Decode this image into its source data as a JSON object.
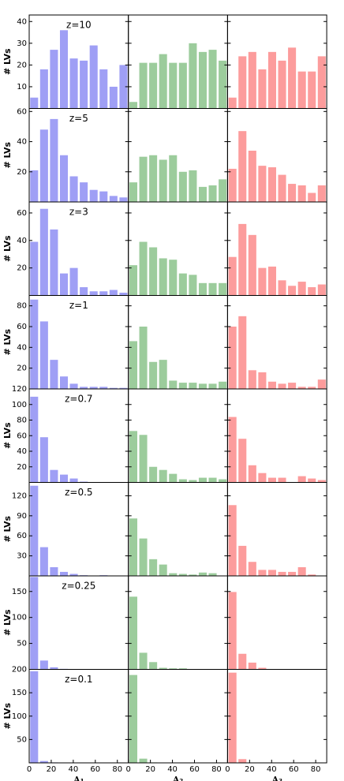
{
  "chart_data": [
    {
      "type": "histogram",
      "title": "z=10",
      "ylabel": "# LVs",
      "bins": [
        0,
        9,
        18,
        27,
        36,
        45,
        54,
        63,
        72,
        81,
        90
      ],
      "xlim": [
        0,
        90
      ],
      "ylim": [
        0,
        43
      ],
      "yticks": [
        10,
        20,
        30,
        40
      ],
      "series": [
        {
          "color": "#9f9ff5",
          "values": [
            5,
            18,
            27,
            36,
            23,
            22,
            29,
            18,
            10,
            20
          ]
        },
        {
          "color": "#9ccc9c",
          "values": [
            3,
            21,
            21,
            25,
            21,
            21,
            30,
            26,
            27,
            22
          ]
        },
        {
          "color": "#fc9c9c",
          "values": [
            5,
            24,
            26,
            18,
            26,
            22,
            28,
            17,
            17,
            24
          ]
        }
      ]
    },
    {
      "type": "histogram",
      "title": "z=5",
      "ylabel": "# LVs",
      "bins": [
        0,
        9,
        18,
        27,
        36,
        45,
        54,
        63,
        72,
        81,
        90
      ],
      "xlim": [
        0,
        90
      ],
      "ylim": [
        0,
        62
      ],
      "yticks": [
        20,
        40,
        60
      ],
      "series": [
        {
          "color": "#9f9ff5",
          "values": [
            21,
            48,
            55,
            31,
            17,
            13,
            8,
            7,
            4,
            3
          ]
        },
        {
          "color": "#9ccc9c",
          "values": [
            13,
            30,
            31,
            28,
            31,
            20,
            21,
            10,
            11,
            15
          ]
        },
        {
          "color": "#fc9c9c",
          "values": [
            22,
            47,
            34,
            24,
            23,
            18,
            12,
            11,
            6,
            11
          ]
        }
      ]
    },
    {
      "type": "histogram",
      "title": "z=3",
      "ylabel": "# LVs",
      "bins": [
        0,
        9,
        18,
        27,
        36,
        45,
        54,
        63,
        72,
        81,
        90
      ],
      "xlim": [
        0,
        90
      ],
      "ylim": [
        0,
        68
      ],
      "yticks": [
        20,
        40,
        60
      ],
      "series": [
        {
          "color": "#9f9ff5",
          "values": [
            39,
            63,
            48,
            16,
            20,
            6,
            3,
            3,
            4,
            2
          ]
        },
        {
          "color": "#9ccc9c",
          "values": [
            22,
            39,
            35,
            27,
            26,
            16,
            15,
            9,
            9,
            9
          ]
        },
        {
          "color": "#fc9c9c",
          "values": [
            28,
            52,
            44,
            20,
            21,
            11,
            7,
            10,
            6,
            8
          ]
        }
      ]
    },
    {
      "type": "histogram",
      "title": "z=1",
      "ylabel": "# LVs",
      "bins": [
        0,
        9,
        18,
        27,
        36,
        45,
        54,
        63,
        72,
        81,
        90
      ],
      "xlim": [
        0,
        90
      ],
      "ylim": [
        0,
        90
      ],
      "yticks": [
        20,
        40,
        60,
        80
      ],
      "series": [
        {
          "color": "#9f9ff5",
          "values": [
            86,
            65,
            28,
            12,
            5,
            2,
            2,
            2,
            1,
            1
          ]
        },
        {
          "color": "#9ccc9c",
          "values": [
            46,
            60,
            26,
            28,
            8,
            6,
            6,
            5,
            5,
            7
          ]
        },
        {
          "color": "#fc9c9c",
          "values": [
            60,
            70,
            18,
            16,
            7,
            5,
            6,
            2,
            2,
            9
          ]
        }
      ]
    },
    {
      "type": "histogram",
      "title": "z=0.7",
      "ylabel": "# LVs",
      "bins": [
        0,
        9,
        18,
        27,
        36,
        45,
        54,
        63,
        72,
        81,
        90
      ],
      "xlim": [
        0,
        90
      ],
      "ylim": [
        0,
        120
      ],
      "yticks": [
        20,
        40,
        60,
        80,
        100,
        120
      ],
      "series": [
        {
          "color": "#9f9ff5",
          "values": [
            110,
            58,
            16,
            10,
            5,
            1,
            0,
            0,
            0,
            0
          ]
        },
        {
          "color": "#9ccc9c",
          "values": [
            66,
            61,
            20,
            16,
            11,
            4,
            3,
            6,
            6,
            4
          ]
        },
        {
          "color": "#fc9c9c",
          "values": [
            84,
            56,
            22,
            12,
            6,
            6,
            0,
            8,
            5,
            3
          ]
        }
      ]
    },
    {
      "type": "histogram",
      "title": "z=0.5",
      "ylabel": "# LVs",
      "bins": [
        0,
        9,
        18,
        27,
        36,
        45,
        54,
        63,
        72,
        81,
        90
      ],
      "xlim": [
        0,
        90
      ],
      "ylim": [
        0,
        140
      ],
      "yticks": [
        30,
        60,
        90,
        120
      ],
      "series": [
        {
          "color": "#9f9ff5",
          "values": [
            135,
            43,
            13,
            6,
            3,
            1,
            0,
            1,
            0,
            0
          ]
        },
        {
          "color": "#9ccc9c",
          "values": [
            86,
            56,
            25,
            17,
            4,
            3,
            2,
            5,
            4,
            0
          ]
        },
        {
          "color": "#fc9c9c",
          "values": [
            106,
            45,
            21,
            9,
            9,
            6,
            6,
            13,
            2,
            0
          ]
        }
      ]
    },
    {
      "type": "histogram",
      "title": "z=0.25",
      "ylabel": "# LVs",
      "bins": [
        0,
        9,
        18,
        27,
        36,
        45,
        54,
        63,
        72,
        81,
        90
      ],
      "xlim": [
        0,
        90
      ],
      "ylim": [
        0,
        180
      ],
      "yticks": [
        50,
        100,
        150
      ],
      "series": [
        {
          "color": "#9f9ff5",
          "values": [
            178,
            17,
            4,
            1,
            0,
            0,
            0,
            0,
            0,
            0
          ]
        },
        {
          "color": "#9ccc9c",
          "values": [
            140,
            32,
            14,
            3,
            2,
            2,
            0,
            0,
            0,
            0
          ]
        },
        {
          "color": "#fc9c9c",
          "values": [
            149,
            30,
            13,
            3,
            0,
            0,
            0,
            0,
            0,
            0
          ]
        }
      ]
    },
    {
      "type": "histogram",
      "title": "z=0.1",
      "ylabel": "# LVs",
      "bins": [
        0,
        9,
        18,
        27,
        36,
        45,
        54,
        63,
        72,
        81,
        90
      ],
      "xlim": [
        0,
        90
      ],
      "ylim": [
        0,
        200
      ],
      "yticks": [
        50,
        100,
        150,
        200
      ],
      "xticks": [
        0,
        20,
        40,
        60,
        80
      ],
      "xlabels": [
        "A₁",
        "A₂",
        "A₃"
      ],
      "series": [
        {
          "color": "#9f9ff5",
          "values": [
            196,
            4,
            1,
            0,
            0,
            0,
            0,
            0,
            0,
            0
          ]
        },
        {
          "color": "#9ccc9c",
          "values": [
            188,
            9,
            1,
            0,
            0,
            0,
            0,
            0,
            0,
            0
          ]
        },
        {
          "color": "#fc9c9c",
          "values": [
            193,
            8,
            0,
            0,
            0,
            0,
            0,
            0,
            0,
            0
          ]
        }
      ]
    }
  ]
}
